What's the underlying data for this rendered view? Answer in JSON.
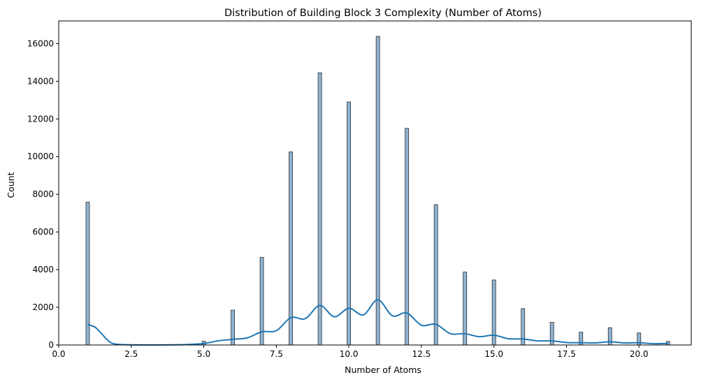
{
  "chart_data": {
    "type": "bar",
    "title": "Distribution of Building Block 3 Complexity (Number of Atoms)",
    "xlabel": "Number of Atoms",
    "ylabel": "Count",
    "xlim": [
      0,
      21.8
    ],
    "ylim": [
      0,
      17200
    ],
    "xticks": [
      0,
      2.5,
      5,
      7.5,
      10,
      12.5,
      15,
      17.5,
      20
    ],
    "xtick_labels": [
      "0.0",
      "2.5",
      "5.0",
      "7.5",
      "10.0",
      "12.5",
      "15.0",
      "17.5",
      "20.0"
    ],
    "yticks": [
      0,
      2000,
      4000,
      6000,
      8000,
      10000,
      12000,
      14000,
      16000
    ],
    "ytick_labels": [
      "0",
      "2000",
      "4000",
      "6000",
      "8000",
      "10000",
      "12000",
      "14000",
      "16000"
    ],
    "grid": false,
    "legend": "none",
    "bar_color": "#8fb4d3",
    "bar_edge_color": "#2b2b2b",
    "kde_color": "#1f77b4",
    "histogram": {
      "x": [
        1,
        5,
        6,
        7,
        8,
        9,
        10,
        11,
        12,
        13,
        14,
        15,
        16,
        17,
        18,
        19,
        20,
        21
      ],
      "counts": [
        7580,
        200,
        1850,
        4650,
        10250,
        14450,
        12900,
        16380,
        11500,
        7450,
        3870,
        3450,
        1930,
        1200,
        680,
        920,
        640,
        190
      ]
    },
    "kde_curve": {
      "x": [
        1,
        1.25,
        1.5,
        1.75,
        2.0,
        2.5,
        3.0,
        4.0,
        4.5,
        5.0,
        5.5,
        6.0,
        6.5,
        7.0,
        7.5,
        8.0,
        8.5,
        9.0,
        9.5,
        10.0,
        10.5,
        11.0,
        11.5,
        12.0,
        12.5,
        13.0,
        13.5,
        14.0,
        14.5,
        15.0,
        15.5,
        16.0,
        16.5,
        17.0,
        17.5,
        18.0,
        18.5,
        19.0,
        19.5,
        20.0,
        20.5,
        21.0
      ],
      "y": [
        1080,
        950,
        560,
        170,
        40,
        10,
        5,
        10,
        30,
        80,
        220,
        300,
        380,
        700,
        760,
        1450,
        1400,
        2100,
        1500,
        1950,
        1600,
        2400,
        1550,
        1700,
        1050,
        1100,
        600,
        600,
        440,
        520,
        330,
        320,
        220,
        220,
        130,
        120,
        110,
        170,
        110,
        120,
        70,
        80
      ]
    }
  }
}
